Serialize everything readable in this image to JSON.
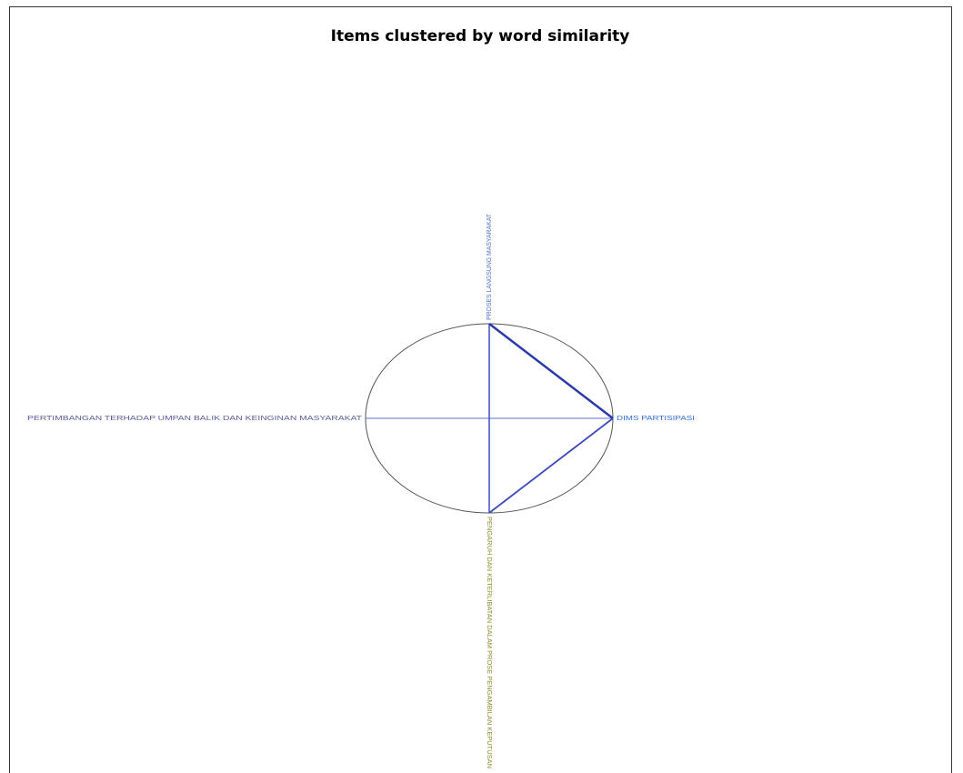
{
  "title": "Items clustered by word similarity",
  "nodes": [
    {
      "label": "PROSES LANGSUNG MASYARAKAT"
    },
    {
      "label": "DIMS PARTISIPASI"
    },
    {
      "label": "PENGARUH DAN KETERLIBATAN DALAM PROSE PENGAMBILAN KEPUTUSAN"
    },
    {
      "label": "PERTIMBANGAN TERHADAP UMPAN BALIK DAN KEINGINAN MASYARAKAT"
    }
  ]
}
